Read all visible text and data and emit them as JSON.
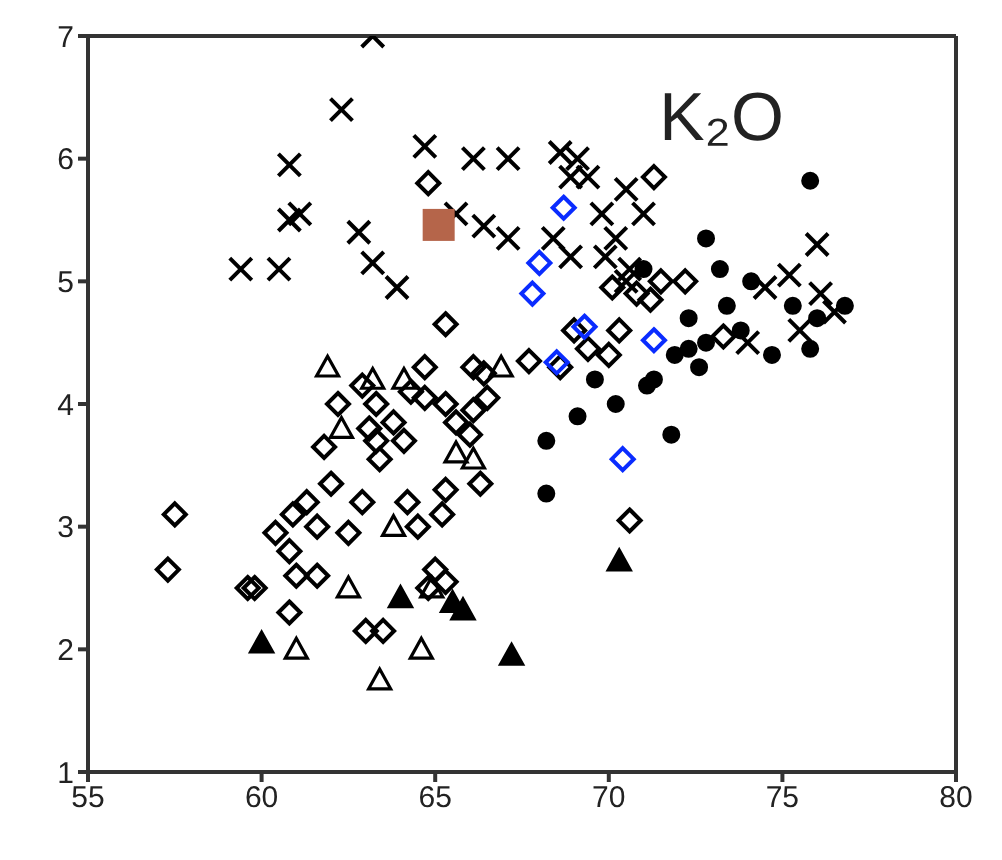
{
  "chart_data": {
    "type": "scatter",
    "title": "K₂O",
    "xlim": [
      55,
      80
    ],
    "xticks": [
      55,
      60,
      65,
      70,
      75,
      80
    ],
    "ylim": [
      1,
      7
    ],
    "yticks": [
      1,
      2,
      3,
      4,
      5,
      6,
      7
    ],
    "series": [
      {
        "color": "#000000",
        "marker": "cross",
        "x": [
          63.2,
          62.3,
          60.8,
          60.8,
          61.1,
          59.4,
          60.5,
          62.8,
          63.2,
          63.9,
          64.7,
          66.1,
          65.6,
          66.4,
          67.1,
          68.6,
          69.1,
          68.9,
          69.4,
          69.8,
          70.2,
          69.9,
          70.5,
          71.0,
          70.6,
          68.4,
          68.9,
          70.5,
          74.5,
          75.2,
          76.1,
          76.0,
          75.5,
          76.5,
          74.0,
          67.1
        ],
        "values": [
          7.0,
          6.4,
          5.95,
          5.5,
          5.55,
          5.1,
          5.1,
          5.4,
          5.15,
          4.95,
          6.1,
          6.0,
          5.55,
          5.45,
          5.35,
          6.05,
          6.0,
          5.85,
          5.85,
          5.55,
          5.35,
          5.2,
          5.75,
          5.55,
          5.1,
          5.35,
          5.2,
          5.0,
          4.95,
          5.05,
          4.9,
          5.3,
          4.6,
          4.75,
          4.5,
          6.0
        ]
      },
      {
        "color": "#000000",
        "marker": "diamond",
        "x": [
          57.5,
          57.3,
          59.6,
          59.8,
          60.4,
          60.9,
          61.3,
          61.6,
          62.0,
          61.8,
          62.2,
          62.9,
          63.3,
          63.1,
          63.8,
          64.3,
          64.7,
          64.7,
          65.3,
          65.6,
          66.1,
          66.0,
          66.5,
          63.3,
          63.4,
          64.1,
          62.9,
          62.5,
          64.2,
          64.5,
          65.3,
          65.2,
          66.3,
          61.6,
          60.8,
          60.8,
          61.0,
          63.0,
          63.5,
          65.0,
          65.3,
          64.8,
          65.3,
          69.0,
          69.4,
          70.0,
          70.3,
          70.1,
          70.8,
          71.2,
          71.5,
          72.2,
          71.3,
          68.6,
          73.3,
          70.6,
          67.7,
          66.1,
          66.4,
          64.8
        ],
        "values": [
          3.1,
          2.65,
          2.5,
          2.5,
          2.95,
          3.1,
          3.2,
          3.0,
          3.35,
          3.65,
          4.0,
          4.15,
          4.0,
          3.8,
          3.85,
          4.1,
          4.3,
          4.05,
          4.0,
          3.85,
          3.95,
          3.75,
          4.05,
          3.7,
          3.55,
          3.7,
          3.2,
          2.95,
          3.2,
          3.0,
          3.3,
          3.1,
          3.35,
          2.6,
          2.3,
          2.8,
          2.6,
          2.15,
          2.15,
          2.65,
          2.55,
          2.5,
          4.65,
          4.6,
          4.45,
          4.4,
          4.6,
          4.95,
          4.9,
          4.85,
          5.0,
          5.0,
          5.85,
          4.3,
          4.55,
          3.05,
          4.35,
          4.3,
          4.25,
          5.8
        ]
      },
      {
        "color": "#000000",
        "marker": "triangle",
        "x": [
          61.9,
          63.2,
          64.1,
          66.9,
          62.3,
          65.6,
          63.8,
          62.5,
          64.9,
          61.0,
          64.6,
          63.4,
          66.1
        ],
        "values": [
          4.3,
          4.2,
          4.2,
          4.3,
          3.8,
          3.6,
          3.0,
          2.5,
          2.5,
          2.0,
          2.0,
          1.75,
          3.55
        ]
      },
      {
        "color": "#000000",
        "marker": "circle",
        "x": [
          75.8,
          68.2,
          68.2,
          71.8,
          70.2,
          69.1,
          71.1,
          69.6,
          72.8,
          73.2,
          72.3,
          72.8,
          73.4,
          73.8,
          74.7,
          75.8,
          76.0,
          76.8,
          75.3,
          74.1,
          71.9,
          71.0,
          72.3,
          72.6,
          71.3
        ],
        "values": [
          5.82,
          3.7,
          3.27,
          3.75,
          4.0,
          3.9,
          4.15,
          4.2,
          5.35,
          5.1,
          4.7,
          4.5,
          4.8,
          4.6,
          4.4,
          4.45,
          4.7,
          4.8,
          4.8,
          5.0,
          4.4,
          5.1,
          4.45,
          4.3,
          4.2
        ]
      },
      {
        "color": "#000000",
        "marker": "triangle",
        "x": [
          60.0,
          64.0,
          65.5,
          65.8,
          67.2,
          70.3
        ],
        "values": [
          2.05,
          2.42,
          2.38,
          2.32,
          1.95,
          2.72
        ]
      },
      {
        "color": "#0a2cff",
        "marker": "diamond",
        "x": [
          68.7,
          68.0,
          67.8,
          69.3,
          68.5,
          71.3,
          70.4
        ],
        "values": [
          5.6,
          5.15,
          4.9,
          4.63,
          4.34,
          4.52,
          3.55
        ]
      },
      {
        "color": "#b5654a",
        "marker": "square",
        "x": [
          65.1
        ],
        "values": [
          5.46
        ]
      }
    ]
  }
}
